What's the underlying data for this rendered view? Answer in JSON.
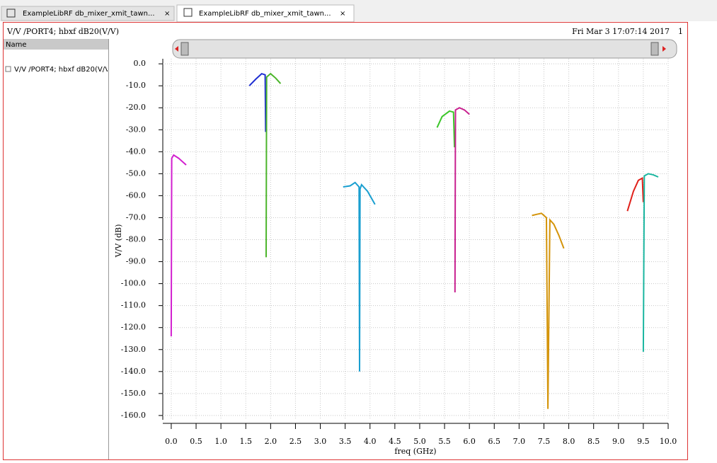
{
  "tabs": [
    "ExampleLibRF db_mixer_xmit_tawn...",
    "ExampleLibRF db_mixer_xmit_tawn..."
  ],
  "header": {
    "title": "V/V /PORT4; hbxf dB20(V/V)",
    "date": "Fri Mar 3 17:07:14 2017",
    "page": "1"
  },
  "sidebar": {
    "heading": "Name",
    "item": "V/V /PORT4; hbxf dB20(V/V"
  },
  "chart_data": {
    "type": "line",
    "xlabel": "freq (GHz)",
    "ylabel": "V/V (dB)",
    "xlim": [
      -0.17,
      10.0
    ],
    "ylim": [
      -161,
      2.3
    ],
    "grid": true,
    "xticks": [
      {
        "value": 0,
        "label": "0.0"
      },
      {
        "value": 0.5,
        "label": "0.5"
      },
      {
        "value": 1,
        "label": "1.0"
      },
      {
        "value": 1.5,
        "label": "1.5"
      },
      {
        "value": 2,
        "label": "2.0"
      },
      {
        "value": 2.5,
        "label": "2.5"
      },
      {
        "value": 3,
        "label": "3.0"
      },
      {
        "value": 3.5,
        "label": "3.5"
      },
      {
        "value": 4,
        "label": "4.0"
      },
      {
        "value": 4.5,
        "label": "4.5"
      },
      {
        "value": 5,
        "label": "5.0"
      },
      {
        "value": 5.5,
        "label": "5.5"
      },
      {
        "value": 6,
        "label": "6.0"
      },
      {
        "value": 6.5,
        "label": "6.5"
      },
      {
        "value": 7,
        "label": "7.0"
      },
      {
        "value": 7.5,
        "label": "7.5"
      },
      {
        "value": 8,
        "label": "8.0"
      },
      {
        "value": 8.5,
        "label": "8.5"
      },
      {
        "value": 9,
        "label": "9.0"
      },
      {
        "value": 9.5,
        "label": "9.5"
      },
      {
        "value": 10,
        "label": "10.0"
      }
    ],
    "yticks": [
      {
        "value": 0,
        "label": "0.0"
      },
      {
        "value": -10,
        "label": "-10.0"
      },
      {
        "value": -20,
        "label": "-20.0"
      },
      {
        "value": -30,
        "label": "-30.0"
      },
      {
        "value": -40,
        "label": "-40.0"
      },
      {
        "value": -50,
        "label": "-50.0"
      },
      {
        "value": -60,
        "label": "-60.0"
      },
      {
        "value": -70,
        "label": "-70.0"
      },
      {
        "value": -80,
        "label": "-80.0"
      },
      {
        "value": -90,
        "label": "-90.0"
      },
      {
        "value": -100,
        "label": "-100.0"
      },
      {
        "value": -110,
        "label": "-110.0"
      },
      {
        "value": -120,
        "label": "-120.0"
      },
      {
        "value": -130,
        "label": "-130.0"
      },
      {
        "value": -140,
        "label": "-140.0"
      },
      {
        "value": -150,
        "label": "-150.0"
      },
      {
        "value": -160,
        "label": "-160.0"
      }
    ],
    "series": [
      {
        "color": "#d21fcf",
        "x": [
          0.0,
          0.01,
          0.05,
          0.15,
          0.3
        ],
        "values": [
          -124,
          -43,
          -41.5,
          -43,
          -46
        ]
      },
      {
        "color": "#1f2fd2",
        "x": [
          1.57,
          1.7,
          1.82,
          1.89,
          1.9
        ],
        "values": [
          -10,
          -7,
          -4.5,
          -5,
          -31
        ]
      },
      {
        "color": "#4bb52a",
        "x": [
          1.91,
          1.92,
          2.0,
          2.1,
          2.2
        ],
        "values": [
          -88,
          -6,
          -4.5,
          -6.5,
          -9
        ]
      },
      {
        "color": "#1a9fd0",
        "x": [
          3.46,
          3.6,
          3.7,
          3.78,
          3.79,
          3.8,
          3.83,
          3.95,
          4.1
        ],
        "values": [
          -56,
          -55.5,
          -54,
          -56,
          -140,
          -57,
          -55,
          -58,
          -64
        ]
      },
      {
        "color": "#3cc62a",
        "x": [
          5.35,
          5.45,
          5.6,
          5.68,
          5.7
        ],
        "values": [
          -29,
          -24,
          -21.5,
          -22,
          -38
        ]
      },
      {
        "color": "#c81f8f",
        "x": [
          5.71,
          5.72,
          5.8,
          5.9,
          6.0
        ],
        "values": [
          -104,
          -21,
          -20,
          -21,
          -23
        ]
      },
      {
        "color": "#d4940a",
        "x": [
          7.26,
          7.35,
          7.45,
          7.55,
          7.58,
          7.62,
          7.7,
          7.8,
          7.9
        ],
        "values": [
          -69,
          -68.5,
          -68,
          -70,
          -157,
          -71,
          -73,
          -78,
          -84
        ]
      },
      {
        "color": "#e0201a",
        "x": [
          9.18,
          9.3,
          9.4,
          9.48,
          9.5
        ],
        "values": [
          -67,
          -58,
          -53,
          -52,
          -63
        ]
      },
      {
        "color": "#1ab6a0",
        "x": [
          9.5,
          9.52,
          9.6,
          9.7,
          9.8
        ],
        "values": [
          -131,
          -51,
          -50,
          -50.5,
          -51.5
        ]
      }
    ]
  }
}
